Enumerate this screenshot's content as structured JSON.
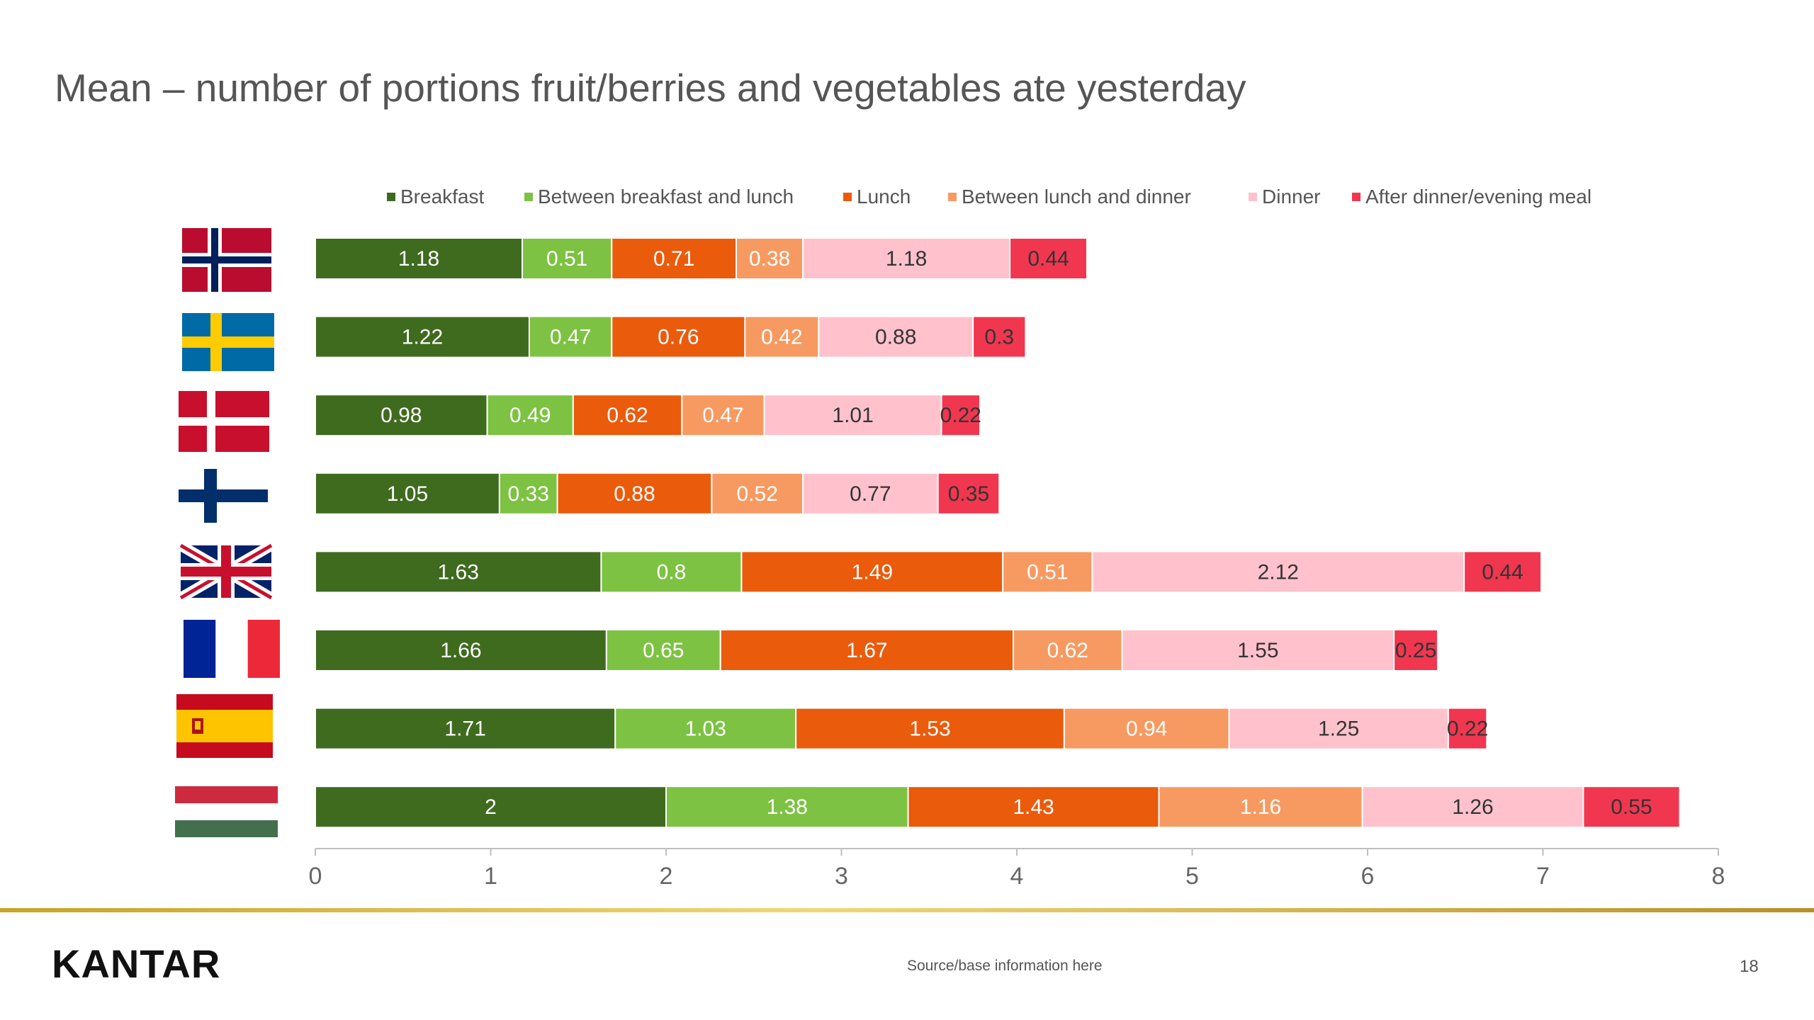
{
  "title": "Mean – number of portions fruit/berries and vegetables ate yesterday",
  "footer": {
    "logo": "KANTAR",
    "source": "Source/base information here",
    "page_number": "18"
  },
  "flags": [
    {
      "country": "Norway",
      "icon": "norway-flag-icon"
    },
    {
      "country": "Sweden",
      "icon": "sweden-flag-icon"
    },
    {
      "country": "Denmark",
      "icon": "denmark-flag-icon"
    },
    {
      "country": "Finland",
      "icon": "finland-flag-icon"
    },
    {
      "country": "United Kingdom",
      "icon": "uk-flag-icon"
    },
    {
      "country": "France",
      "icon": "france-flag-icon"
    },
    {
      "country": "Spain",
      "icon": "spain-flag-icon"
    },
    {
      "country": "Hungary",
      "icon": "hungary-flag-icon"
    }
  ],
  "chart_data": {
    "type": "bar",
    "orientation": "horizontal",
    "stacked": true,
    "title": "Mean – number of portions fruit/berries and vegetables ate yesterday",
    "categories": [
      "Norway",
      "Sweden",
      "Denmark",
      "Finland",
      "United Kingdom",
      "France",
      "Spain",
      "Hungary"
    ],
    "xlim": [
      0,
      8
    ],
    "xticks": [
      0,
      1,
      2,
      3,
      4,
      5,
      6,
      7,
      8
    ],
    "legend_position": "top",
    "grid": false,
    "series": [
      {
        "name": "Breakfast",
        "color": "#3f6b1f",
        "label_color": "#ffffff",
        "values": [
          1.18,
          1.22,
          0.98,
          1.05,
          1.63,
          1.66,
          1.71,
          2
        ]
      },
      {
        "name": "Between breakfast and lunch",
        "color": "#7dc242",
        "label_color": "#ffffff",
        "values": [
          0.51,
          0.47,
          0.49,
          0.33,
          0.8,
          0.65,
          1.03,
          1.38
        ]
      },
      {
        "name": "Lunch",
        "color": "#ea5b0c",
        "label_color": "#ffffff",
        "values": [
          0.71,
          0.76,
          0.62,
          0.88,
          1.49,
          1.67,
          1.53,
          1.43
        ]
      },
      {
        "name": "Between lunch and dinner",
        "color": "#f79a61",
        "label_color": "#ffffff",
        "values": [
          0.38,
          0.42,
          0.47,
          0.52,
          0.51,
          0.62,
          0.94,
          1.16
        ]
      },
      {
        "name": "Dinner",
        "color": "#ffc2cc",
        "label_color": "#333333",
        "values": [
          1.18,
          0.88,
          1.01,
          0.77,
          2.12,
          1.55,
          1.25,
          1.26
        ]
      },
      {
        "name": "After dinner/evening meal",
        "color": "#f0374f",
        "label_color": "#333333",
        "values": [
          0.44,
          0.3,
          0.22,
          0.35,
          0.44,
          0.25,
          0.22,
          0.55
        ]
      }
    ]
  }
}
